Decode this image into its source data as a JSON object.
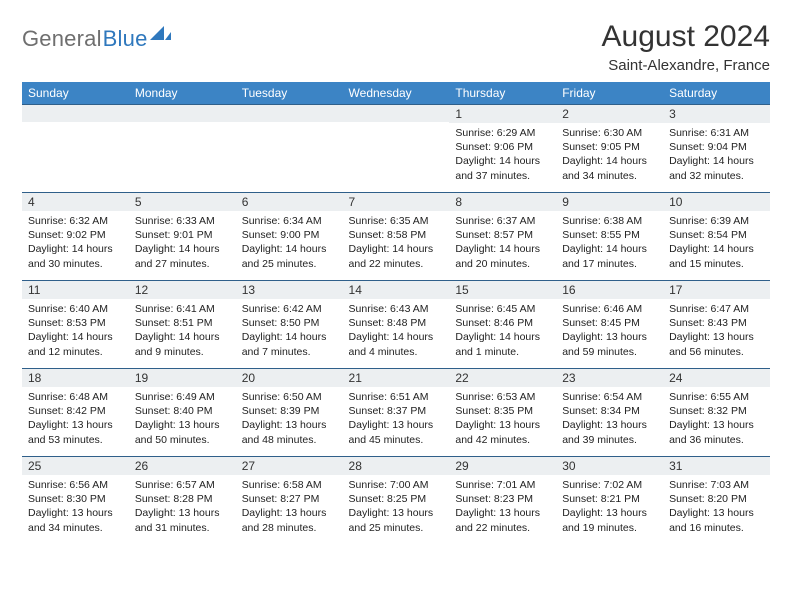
{
  "brand": {
    "part1": "General",
    "part2": "Blue"
  },
  "title": "August 2024",
  "subtitle": "Saint-Alexandre, France",
  "colors": {
    "header_bg": "#3c84c5",
    "header_text": "#ffffff",
    "daynum_bg": "#eceff1",
    "daynum_border": "#2f5f8a",
    "logo_gray": "#6f6f6f",
    "logo_blue": "#2f78bd",
    "text": "#333333"
  },
  "weekdays": [
    "Sunday",
    "Monday",
    "Tuesday",
    "Wednesday",
    "Thursday",
    "Friday",
    "Saturday"
  ],
  "layout": {
    "first_weekday_index": 4,
    "days_in_month": 31
  },
  "days": {
    "1": {
      "sunrise": "6:29 AM",
      "sunset": "9:06 PM",
      "daylight": "14 hours and 37 minutes."
    },
    "2": {
      "sunrise": "6:30 AM",
      "sunset": "9:05 PM",
      "daylight": "14 hours and 34 minutes."
    },
    "3": {
      "sunrise": "6:31 AM",
      "sunset": "9:04 PM",
      "daylight": "14 hours and 32 minutes."
    },
    "4": {
      "sunrise": "6:32 AM",
      "sunset": "9:02 PM",
      "daylight": "14 hours and 30 minutes."
    },
    "5": {
      "sunrise": "6:33 AM",
      "sunset": "9:01 PM",
      "daylight": "14 hours and 27 minutes."
    },
    "6": {
      "sunrise": "6:34 AM",
      "sunset": "9:00 PM",
      "daylight": "14 hours and 25 minutes."
    },
    "7": {
      "sunrise": "6:35 AM",
      "sunset": "8:58 PM",
      "daylight": "14 hours and 22 minutes."
    },
    "8": {
      "sunrise": "6:37 AM",
      "sunset": "8:57 PM",
      "daylight": "14 hours and 20 minutes."
    },
    "9": {
      "sunrise": "6:38 AM",
      "sunset": "8:55 PM",
      "daylight": "14 hours and 17 minutes."
    },
    "10": {
      "sunrise": "6:39 AM",
      "sunset": "8:54 PM",
      "daylight": "14 hours and 15 minutes."
    },
    "11": {
      "sunrise": "6:40 AM",
      "sunset": "8:53 PM",
      "daylight": "14 hours and 12 minutes."
    },
    "12": {
      "sunrise": "6:41 AM",
      "sunset": "8:51 PM",
      "daylight": "14 hours and 9 minutes."
    },
    "13": {
      "sunrise": "6:42 AM",
      "sunset": "8:50 PM",
      "daylight": "14 hours and 7 minutes."
    },
    "14": {
      "sunrise": "6:43 AM",
      "sunset": "8:48 PM",
      "daylight": "14 hours and 4 minutes."
    },
    "15": {
      "sunrise": "6:45 AM",
      "sunset": "8:46 PM",
      "daylight": "14 hours and 1 minute."
    },
    "16": {
      "sunrise": "6:46 AM",
      "sunset": "8:45 PM",
      "daylight": "13 hours and 59 minutes."
    },
    "17": {
      "sunrise": "6:47 AM",
      "sunset": "8:43 PM",
      "daylight": "13 hours and 56 minutes."
    },
    "18": {
      "sunrise": "6:48 AM",
      "sunset": "8:42 PM",
      "daylight": "13 hours and 53 minutes."
    },
    "19": {
      "sunrise": "6:49 AM",
      "sunset": "8:40 PM",
      "daylight": "13 hours and 50 minutes."
    },
    "20": {
      "sunrise": "6:50 AM",
      "sunset": "8:39 PM",
      "daylight": "13 hours and 48 minutes."
    },
    "21": {
      "sunrise": "6:51 AM",
      "sunset": "8:37 PM",
      "daylight": "13 hours and 45 minutes."
    },
    "22": {
      "sunrise": "6:53 AM",
      "sunset": "8:35 PM",
      "daylight": "13 hours and 42 minutes."
    },
    "23": {
      "sunrise": "6:54 AM",
      "sunset": "8:34 PM",
      "daylight": "13 hours and 39 minutes."
    },
    "24": {
      "sunrise": "6:55 AM",
      "sunset": "8:32 PM",
      "daylight": "13 hours and 36 minutes."
    },
    "25": {
      "sunrise": "6:56 AM",
      "sunset": "8:30 PM",
      "daylight": "13 hours and 34 minutes."
    },
    "26": {
      "sunrise": "6:57 AM",
      "sunset": "8:28 PM",
      "daylight": "13 hours and 31 minutes."
    },
    "27": {
      "sunrise": "6:58 AM",
      "sunset": "8:27 PM",
      "daylight": "13 hours and 28 minutes."
    },
    "28": {
      "sunrise": "7:00 AM",
      "sunset": "8:25 PM",
      "daylight": "13 hours and 25 minutes."
    },
    "29": {
      "sunrise": "7:01 AM",
      "sunset": "8:23 PM",
      "daylight": "13 hours and 22 minutes."
    },
    "30": {
      "sunrise": "7:02 AM",
      "sunset": "8:21 PM",
      "daylight": "13 hours and 19 minutes."
    },
    "31": {
      "sunrise": "7:03 AM",
      "sunset": "8:20 PM",
      "daylight": "13 hours and 16 minutes."
    }
  },
  "labels": {
    "sunrise": "Sunrise: ",
    "sunset": "Sunset: ",
    "daylight": "Daylight: "
  }
}
